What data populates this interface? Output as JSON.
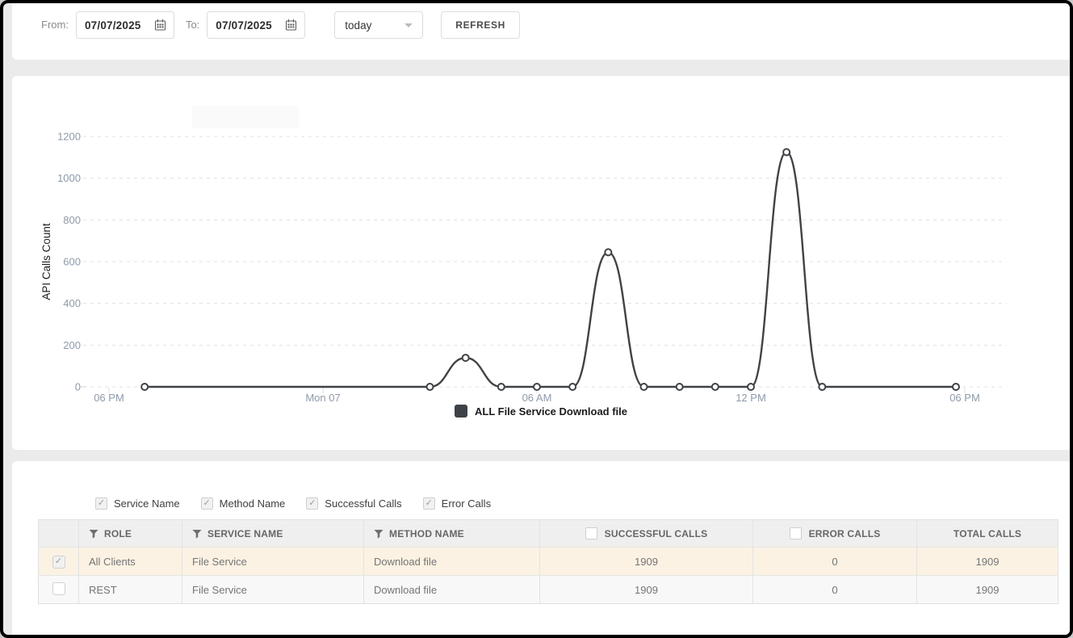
{
  "filter_bar": {
    "from_label": "From:",
    "from_value": "07/07/2025",
    "to_label": "To:",
    "to_value": "07/07/2025",
    "range_value": "today",
    "refresh_label": "REFRESH"
  },
  "chart_data": {
    "type": "line",
    "ylabel": "API Calls Count",
    "ylim": [
      0,
      1200
    ],
    "y_ticks": [
      0,
      200,
      400,
      600,
      800,
      1000,
      1200
    ],
    "x_ticks": [
      {
        "hour": -6,
        "label": "06 PM"
      },
      {
        "hour": 0,
        "label": "Mon 07"
      },
      {
        "hour": 6,
        "label": "06 AM"
      },
      {
        "hour": 12,
        "label": "12 PM"
      },
      {
        "hour": 18,
        "label": "06 PM"
      }
    ],
    "grid": "dashed-horizontal",
    "legend_position": "bottom-center",
    "line_color": "#3f4347",
    "tick_color": "#8e9aa9",
    "series": [
      {
        "name": "ALL File Service Download file",
        "points": [
          {
            "hour": -5,
            "value": 0
          },
          {
            "hour": 3,
            "value": 0
          },
          {
            "hour": 4,
            "value": 139
          },
          {
            "hour": 5,
            "value": 0
          },
          {
            "hour": 6,
            "value": 0
          },
          {
            "hour": 7,
            "value": 0
          },
          {
            "hour": 8,
            "value": 645
          },
          {
            "hour": 9,
            "value": 0
          },
          {
            "hour": 10,
            "value": 0
          },
          {
            "hour": 11,
            "value": 0
          },
          {
            "hour": 12,
            "value": 0
          },
          {
            "hour": 13,
            "value": 1125
          },
          {
            "hour": 14,
            "value": 0
          },
          {
            "hour": 17.75,
            "value": 0
          }
        ]
      }
    ],
    "legend": [
      {
        "label": "ALL File Service Download file",
        "color": "#3d4247"
      }
    ]
  },
  "column_toggles": [
    {
      "label": "Service Name",
      "checked": true
    },
    {
      "label": "Method Name",
      "checked": true
    },
    {
      "label": "Successful Calls",
      "checked": true
    },
    {
      "label": "Error Calls",
      "checked": true
    }
  ],
  "table": {
    "columns": [
      {
        "label": "ROLE",
        "icon": "filter"
      },
      {
        "label": "SERVICE NAME",
        "icon": "filter"
      },
      {
        "label": "METHOD NAME",
        "icon": "filter"
      },
      {
        "label": "SUCCESSFUL CALLS",
        "icon": "checkbox"
      },
      {
        "label": "ERROR CALLS",
        "icon": "checkbox"
      },
      {
        "label": "TOTAL CALLS",
        "icon": "none"
      }
    ],
    "header_checkboxes": {
      "successful": false,
      "error": false
    },
    "rows": [
      {
        "selected": true,
        "role": "All Clients",
        "service": "File Service",
        "method": "Download file",
        "successful": "1909",
        "error": "0",
        "total": "1909"
      },
      {
        "selected": false,
        "role": "REST",
        "service": "File Service",
        "method": "Download file",
        "successful": "1909",
        "error": "0",
        "total": "1909"
      }
    ]
  }
}
